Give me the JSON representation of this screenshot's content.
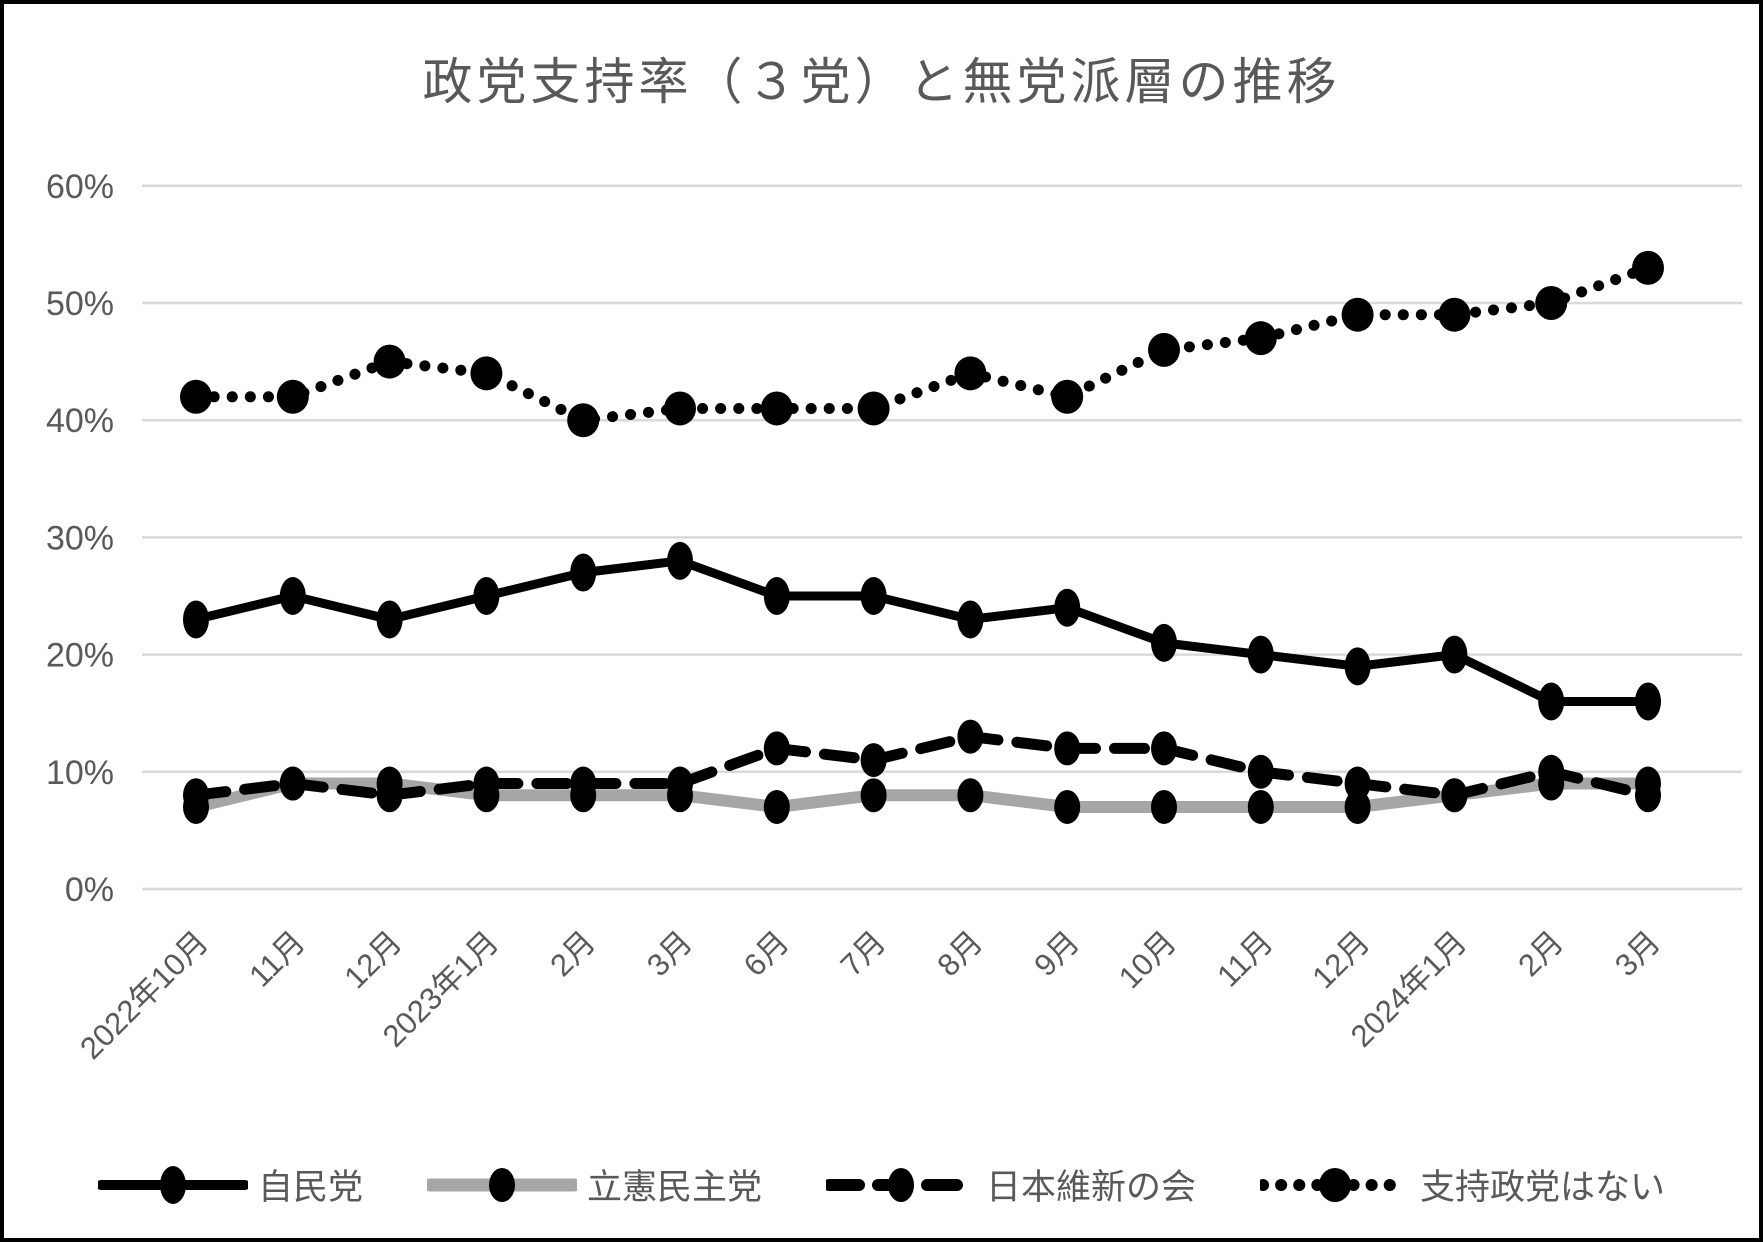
{
  "chart_data": {
    "type": "line",
    "title": "政党支持率（３党）と無党派層の推移",
    "categories": [
      "2022年10月",
      "11月",
      "12月",
      "2023年1月",
      "2月",
      "3月",
      "6月",
      "7月",
      "8月",
      "9月",
      "10月",
      "11月",
      "12月",
      "2024年1月",
      "2月",
      "3月"
    ],
    "y_ticks": [
      "0%",
      "10%",
      "20%",
      "30%",
      "40%",
      "50%",
      "60%"
    ],
    "ylim": [
      0,
      60
    ],
    "grid": "horizontal",
    "legend_position": "bottom",
    "series": [
      {
        "name": "自民党",
        "style": "solid-black",
        "values": [
          23,
          25,
          23,
          25,
          27,
          28,
          25,
          25,
          23,
          24,
          21,
          20,
          19,
          20,
          16,
          16
        ]
      },
      {
        "name": "立憲民主党",
        "style": "solid-gray",
        "values": [
          7,
          9,
          9,
          8,
          8,
          8,
          7,
          8,
          8,
          7,
          7,
          7,
          7,
          8,
          9,
          9
        ]
      },
      {
        "name": "日本維新の会",
        "style": "dashed-black",
        "values": [
          8,
          9,
          8,
          9,
          9,
          9,
          12,
          11,
          13,
          12,
          12,
          10,
          9,
          8,
          10,
          8
        ]
      },
      {
        "name": "支持政党はない",
        "style": "dotted-black",
        "values": [
          42,
          42,
          45,
          44,
          40,
          41,
          41,
          41,
          44,
          42,
          46,
          47,
          49,
          49,
          50,
          53
        ]
      }
    ],
    "colors": {
      "black": "#000000",
      "gray_line": "#A6A6A6",
      "grid": "#D9D9D9",
      "text": "#595959"
    }
  }
}
